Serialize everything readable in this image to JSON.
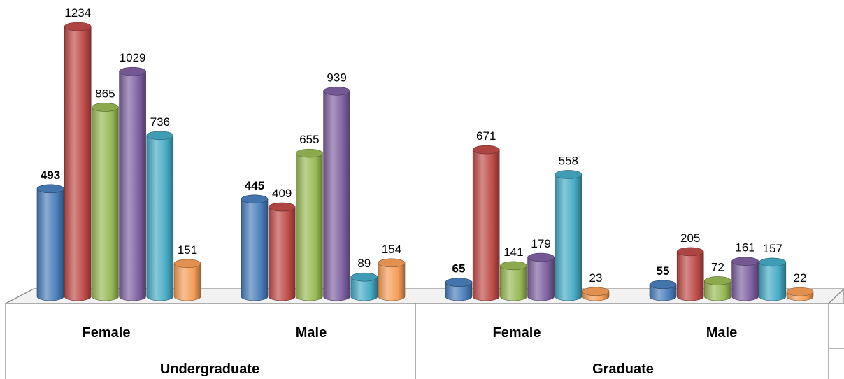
{
  "chart_data": {
    "type": "bar",
    "title": "",
    "xlabel": "",
    "ylabel": "",
    "ylim": [
      0,
      1300
    ],
    "grid": false,
    "legend": "none",
    "groups": [
      {
        "label": "Undergraduate",
        "categories": [
          "Female",
          "Male"
        ]
      },
      {
        "label": "Graduate",
        "categories": [
          "Female",
          "Male"
        ]
      }
    ],
    "categories": [
      "Female",
      "Male",
      "Female",
      "Male"
    ],
    "series": [
      {
        "color": "#4a7ebb",
        "values": [
          493,
          445,
          65,
          55
        ]
      },
      {
        "color": "#be4b48",
        "values": [
          1234,
          409,
          671,
          205
        ]
      },
      {
        "color": "#98b954",
        "values": [
          865,
          655,
          141,
          72
        ]
      },
      {
        "color": "#7d60a0",
        "values": [
          1029,
          939,
          179,
          161
        ]
      },
      {
        "color": "#46aac5",
        "values": [
          736,
          89,
          558,
          157
        ]
      },
      {
        "color": "#f59d56",
        "values": [
          151,
          154,
          23,
          22
        ]
      }
    ],
    "first_series_labels_bold": true
  }
}
